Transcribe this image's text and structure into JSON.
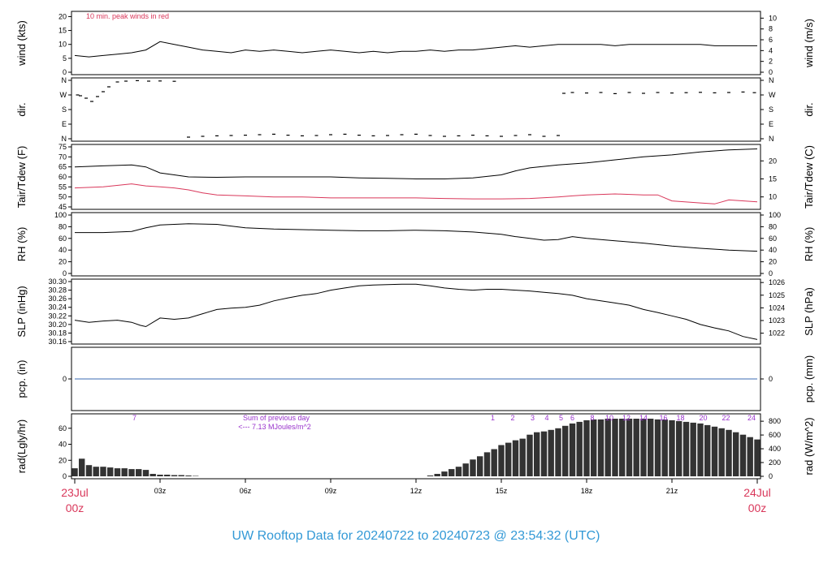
{
  "title": "UW Rooftop Data for 20240722  to  20240723 @ 23:54:32  (UTC)",
  "x_axis": {
    "range_hours": [
      0,
      24
    ],
    "ticks": [
      {
        "hour": 3,
        "label": "03z"
      },
      {
        "hour": 6,
        "label": "06z"
      },
      {
        "hour": 9,
        "label": "09z"
      },
      {
        "hour": 12,
        "label": "12z"
      },
      {
        "hour": 15,
        "label": "15z"
      },
      {
        "hour": 18,
        "label": "18z"
      },
      {
        "hour": 21,
        "label": "21z"
      }
    ],
    "start_label": [
      "23Jul",
      "00z"
    ],
    "end_label": [
      "24Jul",
      "00z"
    ]
  },
  "chart_data": [
    {
      "type": "line",
      "id": "wind",
      "ylabel": "wind (kts)",
      "ylabel_right": "wind (m/s)",
      "ylim": [
        0,
        21
      ],
      "yticks": [
        0,
        5,
        10,
        15,
        20
      ],
      "yticks_right": {
        "values": [
          0,
          2,
          4,
          6,
          8,
          10
        ],
        "factor": 1.94384
      },
      "annotation": "10 min. peak winds in red",
      "series": [
        {
          "color": "#000000",
          "x": [
            0,
            0.5,
            1,
            1.5,
            2,
            2.5,
            3,
            3.5,
            4,
            4.5,
            5,
            5.5,
            6,
            6.5,
            7,
            7.5,
            8,
            8.5,
            9,
            9.5,
            10,
            10.5,
            11,
            11.5,
            12,
            12.5,
            13,
            13.5,
            14,
            14.5,
            15,
            15.5,
            16,
            16.5,
            17,
            17.5,
            18,
            18.5,
            19,
            19.5,
            20,
            20.5,
            21,
            21.5,
            22,
            22.5,
            23,
            23.5,
            24
          ],
          "y": [
            6,
            5.5,
            6,
            6.5,
            7,
            8,
            11,
            10,
            9,
            8,
            7.5,
            7,
            8,
            7.5,
            8,
            7.5,
            7,
            7.5,
            8,
            7.5,
            7,
            7.5,
            7,
            7.5,
            7.5,
            8,
            7.5,
            8,
            8,
            8.5,
            9,
            9.5,
            9,
            9.5,
            10,
            10,
            10,
            10,
            9.5,
            10,
            10,
            10,
            10,
            10,
            10,
            9.5,
            9.5,
            9.5,
            9.5
          ]
        }
      ]
    },
    {
      "type": "scatter",
      "id": "dir",
      "ylabel": "dir.",
      "ylabel_right": "dir.",
      "ylim": [
        0,
        360
      ],
      "ytick_labels": [
        "N",
        "E",
        "S",
        "W",
        "N"
      ],
      "ytick_values": [
        0,
        90,
        180,
        270,
        360
      ],
      "series": [
        {
          "color": "#000000",
          "x": [
            0.1,
            0.2,
            0.4,
            0.6,
            0.8,
            1.0,
            1.2,
            1.5,
            1.8,
            2.2,
            2.6,
            3.0,
            3.5,
            4.0,
            4.5,
            5.0,
            5.5,
            6.0,
            6.5,
            7.0,
            7.5,
            8.0,
            8.5,
            9.0,
            9.5,
            10.0,
            10.5,
            11.0,
            11.5,
            12.0,
            12.5,
            13.0,
            13.5,
            14.0,
            14.5,
            15.0,
            15.5,
            16.0,
            16.5,
            17.0,
            17.2,
            17.5,
            18.0,
            18.5,
            19.0,
            19.5,
            20.0,
            20.5,
            21.0,
            21.5,
            22.0,
            22.5,
            23.0,
            23.5,
            23.9
          ],
          "y": [
            270,
            265,
            250,
            230,
            260,
            290,
            320,
            350,
            355,
            358,
            355,
            356,
            354,
            10,
            15,
            18,
            20,
            22,
            25,
            28,
            22,
            18,
            20,
            25,
            28,
            22,
            18,
            20,
            25,
            28,
            20,
            15,
            18,
            22,
            18,
            15,
            20,
            25,
            15,
            20,
            280,
            285,
            282,
            285,
            278,
            285,
            280,
            285,
            282,
            284,
            286,
            283,
            285,
            288,
            284
          ]
        }
      ]
    },
    {
      "type": "line",
      "id": "temp",
      "ylabel": "Tair/Tdew (F)",
      "ylabel_right": "Tair/Tdew (C)",
      "ylim": [
        45,
        75
      ],
      "yticks": [
        45,
        50,
        55,
        60,
        65,
        70,
        75
      ],
      "yticks_right": {
        "values": [
          10,
          15,
          20
        ],
        "unit": "C"
      },
      "series": [
        {
          "color": "#000000",
          "x": [
            0,
            1,
            2,
            2.5,
            3,
            3.5,
            4,
            5,
            6,
            7,
            8,
            9,
            10,
            11,
            12,
            13,
            14,
            15,
            15.5,
            16,
            17,
            18,
            19,
            20,
            21,
            22,
            23,
            24
          ],
          "y": [
            65,
            65.5,
            66,
            65,
            62,
            61,
            60,
            59.8,
            60,
            60,
            60,
            60,
            59.5,
            59.3,
            59,
            59,
            59.5,
            61,
            63,
            64.5,
            66,
            67,
            68.5,
            70,
            71,
            72.5,
            73.5,
            74
          ]
        },
        {
          "color": "#d9375a",
          "x": [
            0,
            1,
            2,
            2.5,
            3,
            3.5,
            4,
            4.5,
            5,
            6,
            7,
            8,
            9,
            10,
            11,
            12,
            13,
            14,
            15,
            16,
            17,
            17.5,
            18,
            19,
            20,
            20.5,
            21,
            22,
            22.5,
            23,
            24
          ],
          "y": [
            54.5,
            55,
            56.5,
            55.5,
            55,
            54.5,
            53.5,
            52,
            51,
            50.5,
            50,
            50,
            49.5,
            49.5,
            49.5,
            49.5,
            49.2,
            49,
            49,
            49.2,
            50,
            50.5,
            51,
            51.5,
            51,
            51,
            48,
            47,
            46.5,
            48.5,
            47.5
          ]
        }
      ]
    },
    {
      "type": "line",
      "id": "rh",
      "ylabel": "RH (%)",
      "ylabel_right": "RH (%)",
      "ylim": [
        0,
        100
      ],
      "yticks": [
        0,
        20,
        40,
        60,
        80,
        100
      ],
      "series": [
        {
          "color": "#000000",
          "x": [
            0,
            1,
            2,
            2.5,
            3,
            4,
            5,
            6,
            7,
            8,
            9,
            10,
            11,
            12,
            13,
            14,
            15,
            15.5,
            16,
            16.5,
            17,
            17.5,
            18,
            19,
            20,
            21,
            22,
            23,
            24
          ],
          "y": [
            70,
            70,
            72,
            78,
            83,
            85,
            84,
            78,
            76,
            75,
            74,
            73,
            73,
            74,
            73,
            71,
            67,
            63,
            60,
            57,
            58,
            63,
            60,
            56,
            52,
            47,
            43,
            40,
            38
          ]
        }
      ]
    },
    {
      "type": "line",
      "id": "slp",
      "ylabel": "SLP (inHg)",
      "ylabel_right": "SLP (hPa)",
      "ylim": [
        30.16,
        30.3
      ],
      "yticks": [
        30.16,
        30.18,
        30.2,
        30.22,
        30.24,
        30.26,
        30.28,
        30.3
      ],
      "yticks_right": {
        "values": [
          1022,
          1023,
          1024,
          1025,
          1026
        ],
        "unit": "hPa"
      },
      "series": [
        {
          "color": "#000000",
          "x": [
            0,
            0.5,
            1,
            1.5,
            2,
            2.3,
            2.5,
            3,
            3.5,
            4,
            4.5,
            5,
            5.5,
            6,
            6.5,
            7,
            7.5,
            8,
            8.5,
            9,
            9.5,
            10,
            10.5,
            11,
            11.5,
            12,
            12.5,
            13,
            13.5,
            14,
            14.5,
            15,
            15.5,
            16,
            16.5,
            17,
            17.5,
            18,
            18.5,
            19,
            19.5,
            20,
            20.5,
            21,
            21.5,
            22,
            22.5,
            23,
            23.5,
            24
          ],
          "y": [
            30.21,
            30.205,
            30.208,
            30.21,
            30.205,
            30.198,
            30.195,
            30.215,
            30.212,
            30.215,
            30.225,
            30.235,
            30.238,
            30.24,
            30.245,
            30.255,
            30.262,
            30.268,
            30.272,
            30.28,
            30.285,
            30.29,
            30.292,
            30.293,
            30.294,
            30.294,
            30.29,
            30.285,
            30.282,
            30.28,
            30.282,
            30.282,
            30.28,
            30.278,
            30.275,
            30.272,
            30.268,
            30.26,
            30.255,
            30.25,
            30.245,
            30.235,
            30.228,
            30.22,
            30.212,
            30.2,
            30.192,
            30.185,
            30.172,
            30.165
          ]
        }
      ]
    },
    {
      "type": "line",
      "id": "pcp",
      "ylabel": "pcp. (in)",
      "ylabel_right": "pcp. (mm)",
      "ylim": [
        -1,
        1
      ],
      "yticks": [
        0
      ],
      "yticks_right": {
        "values": [
          0
        ]
      },
      "series": [
        {
          "color": "#3b6bb3",
          "x": [
            0,
            24
          ],
          "y": [
            0,
            0
          ]
        }
      ]
    },
    {
      "type": "bar",
      "id": "rad",
      "ylabel": "rad(Lgly/hr)",
      "ylabel_right": "rad (W/m^2)",
      "ylim": [
        0,
        75
      ],
      "yticks": [
        0,
        20,
        40,
        60
      ],
      "yticks_right": {
        "values": [
          0,
          200,
          400,
          600,
          800
        ],
        "factor": 0.086
      },
      "annotation": [
        "Sum of previous day",
        "<--- 7.13 MJoules/m^2"
      ],
      "hour_labels": [
        {
          "hour": 2.1,
          "label": "7"
        },
        {
          "hour": 14.7,
          "label": "1"
        },
        {
          "hour": 15.4,
          "label": "2"
        },
        {
          "hour": 16.1,
          "label": "3"
        },
        {
          "hour": 16.6,
          "label": "4"
        },
        {
          "hour": 17.1,
          "label": "5"
        },
        {
          "hour": 17.5,
          "label": "6"
        },
        {
          "hour": 18.2,
          "label": "8"
        },
        {
          "hour": 18.8,
          "label": "10"
        },
        {
          "hour": 19.4,
          "label": "12"
        },
        {
          "hour": 20.0,
          "label": "14"
        },
        {
          "hour": 20.7,
          "label": "16"
        },
        {
          "hour": 21.3,
          "label": "18"
        },
        {
          "hour": 22.1,
          "label": "20"
        },
        {
          "hour": 22.9,
          "label": "22"
        },
        {
          "hour": 23.8,
          "label": "24"
        }
      ],
      "x": [
        0,
        0.25,
        0.5,
        0.75,
        1,
        1.25,
        1.5,
        1.75,
        2,
        2.25,
        2.5,
        2.75,
        3,
        3.25,
        3.5,
        3.75,
        4,
        4.25,
        12.5,
        12.75,
        13,
        13.25,
        13.5,
        13.75,
        14,
        14.25,
        14.5,
        14.75,
        15,
        15.25,
        15.5,
        15.75,
        16,
        16.25,
        16.5,
        16.75,
        17,
        17.25,
        17.5,
        17.75,
        18,
        18.25,
        18.5,
        18.75,
        19,
        19.25,
        19.5,
        19.75,
        20,
        20.25,
        20.5,
        20.75,
        21,
        21.25,
        21.5,
        21.75,
        22,
        22.25,
        22.5,
        22.75,
        23,
        23.25,
        23.5,
        23.75,
        24
      ],
      "values": [
        10,
        22,
        14,
        12,
        12,
        11,
        10,
        10,
        9,
        9,
        8,
        3,
        2,
        2,
        1.5,
        1.5,
        1,
        0.5,
        1,
        3,
        6,
        9,
        12,
        16,
        21,
        25,
        30,
        34,
        39,
        42,
        45,
        47,
        52,
        55,
        56,
        58,
        60,
        63,
        66,
        68,
        70,
        71,
        71,
        72,
        72,
        72,
        72,
        72,
        72,
        72,
        71,
        71,
        70,
        69,
        68,
        67,
        66,
        64,
        62,
        60,
        58,
        55,
        52,
        49,
        46
      ]
    }
  ]
}
